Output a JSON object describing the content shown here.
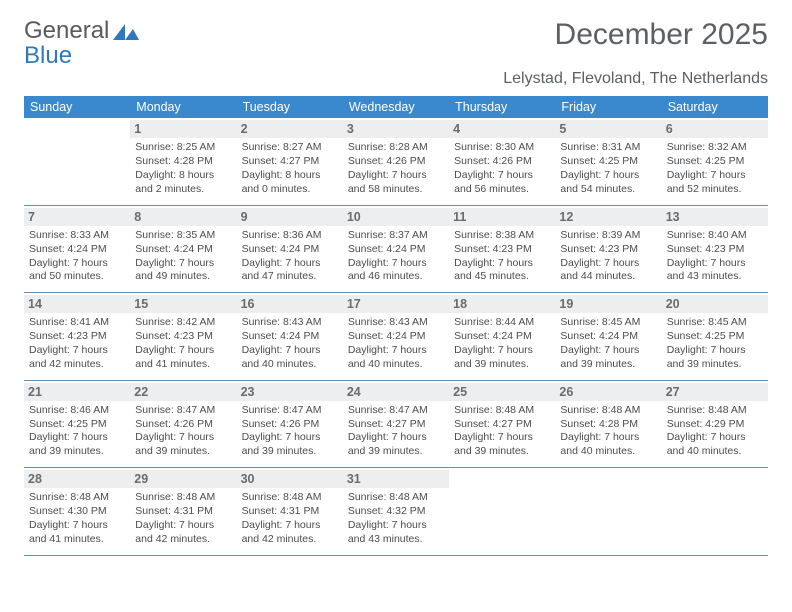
{
  "logo": {
    "word1": "General",
    "word2": "Blue"
  },
  "title": "December 2025",
  "subtitle": "Lelystad, Flevoland, The Netherlands",
  "colors": {
    "header_bg": "#3a89cf",
    "header_fg": "#ffffff",
    "daynum_bg": "#edeeef",
    "daynum_fg": "#686c6f",
    "rule": "#5f92bc",
    "title_fg": "#5b6064",
    "body_fg": "#4a4d50",
    "logo_gray": "#555a5e",
    "logo_blue": "#2f78bd"
  },
  "day_names": [
    "Sunday",
    "Monday",
    "Tuesday",
    "Wednesday",
    "Thursday",
    "Friday",
    "Saturday"
  ],
  "weeks": [
    [
      {
        "n": "",
        "lines": []
      },
      {
        "n": "1",
        "lines": [
          "Sunrise: 8:25 AM",
          "Sunset: 4:28 PM",
          "Daylight: 8 hours",
          "and 2 minutes."
        ]
      },
      {
        "n": "2",
        "lines": [
          "Sunrise: 8:27 AM",
          "Sunset: 4:27 PM",
          "Daylight: 8 hours",
          "and 0 minutes."
        ]
      },
      {
        "n": "3",
        "lines": [
          "Sunrise: 8:28 AM",
          "Sunset: 4:26 PM",
          "Daylight: 7 hours",
          "and 58 minutes."
        ]
      },
      {
        "n": "4",
        "lines": [
          "Sunrise: 8:30 AM",
          "Sunset: 4:26 PM",
          "Daylight: 7 hours",
          "and 56 minutes."
        ]
      },
      {
        "n": "5",
        "lines": [
          "Sunrise: 8:31 AM",
          "Sunset: 4:25 PM",
          "Daylight: 7 hours",
          "and 54 minutes."
        ]
      },
      {
        "n": "6",
        "lines": [
          "Sunrise: 8:32 AM",
          "Sunset: 4:25 PM",
          "Daylight: 7 hours",
          "and 52 minutes."
        ]
      }
    ],
    [
      {
        "n": "7",
        "lines": [
          "Sunrise: 8:33 AM",
          "Sunset: 4:24 PM",
          "Daylight: 7 hours",
          "and 50 minutes."
        ]
      },
      {
        "n": "8",
        "lines": [
          "Sunrise: 8:35 AM",
          "Sunset: 4:24 PM",
          "Daylight: 7 hours",
          "and 49 minutes."
        ]
      },
      {
        "n": "9",
        "lines": [
          "Sunrise: 8:36 AM",
          "Sunset: 4:24 PM",
          "Daylight: 7 hours",
          "and 47 minutes."
        ]
      },
      {
        "n": "10",
        "lines": [
          "Sunrise: 8:37 AM",
          "Sunset: 4:24 PM",
          "Daylight: 7 hours",
          "and 46 minutes."
        ]
      },
      {
        "n": "11",
        "lines": [
          "Sunrise: 8:38 AM",
          "Sunset: 4:23 PM",
          "Daylight: 7 hours",
          "and 45 minutes."
        ]
      },
      {
        "n": "12",
        "lines": [
          "Sunrise: 8:39 AM",
          "Sunset: 4:23 PM",
          "Daylight: 7 hours",
          "and 44 minutes."
        ]
      },
      {
        "n": "13",
        "lines": [
          "Sunrise: 8:40 AM",
          "Sunset: 4:23 PM",
          "Daylight: 7 hours",
          "and 43 minutes."
        ]
      }
    ],
    [
      {
        "n": "14",
        "lines": [
          "Sunrise: 8:41 AM",
          "Sunset: 4:23 PM",
          "Daylight: 7 hours",
          "and 42 minutes."
        ]
      },
      {
        "n": "15",
        "lines": [
          "Sunrise: 8:42 AM",
          "Sunset: 4:23 PM",
          "Daylight: 7 hours",
          "and 41 minutes."
        ]
      },
      {
        "n": "16",
        "lines": [
          "Sunrise: 8:43 AM",
          "Sunset: 4:24 PM",
          "Daylight: 7 hours",
          "and 40 minutes."
        ]
      },
      {
        "n": "17",
        "lines": [
          "Sunrise: 8:43 AM",
          "Sunset: 4:24 PM",
          "Daylight: 7 hours",
          "and 40 minutes."
        ]
      },
      {
        "n": "18",
        "lines": [
          "Sunrise: 8:44 AM",
          "Sunset: 4:24 PM",
          "Daylight: 7 hours",
          "and 39 minutes."
        ]
      },
      {
        "n": "19",
        "lines": [
          "Sunrise: 8:45 AM",
          "Sunset: 4:24 PM",
          "Daylight: 7 hours",
          "and 39 minutes."
        ]
      },
      {
        "n": "20",
        "lines": [
          "Sunrise: 8:45 AM",
          "Sunset: 4:25 PM",
          "Daylight: 7 hours",
          "and 39 minutes."
        ]
      }
    ],
    [
      {
        "n": "21",
        "lines": [
          "Sunrise: 8:46 AM",
          "Sunset: 4:25 PM",
          "Daylight: 7 hours",
          "and 39 minutes."
        ]
      },
      {
        "n": "22",
        "lines": [
          "Sunrise: 8:47 AM",
          "Sunset: 4:26 PM",
          "Daylight: 7 hours",
          "and 39 minutes."
        ]
      },
      {
        "n": "23",
        "lines": [
          "Sunrise: 8:47 AM",
          "Sunset: 4:26 PM",
          "Daylight: 7 hours",
          "and 39 minutes."
        ]
      },
      {
        "n": "24",
        "lines": [
          "Sunrise: 8:47 AM",
          "Sunset: 4:27 PM",
          "Daylight: 7 hours",
          "and 39 minutes."
        ]
      },
      {
        "n": "25",
        "lines": [
          "Sunrise: 8:48 AM",
          "Sunset: 4:27 PM",
          "Daylight: 7 hours",
          "and 39 minutes."
        ]
      },
      {
        "n": "26",
        "lines": [
          "Sunrise: 8:48 AM",
          "Sunset: 4:28 PM",
          "Daylight: 7 hours",
          "and 40 minutes."
        ]
      },
      {
        "n": "27",
        "lines": [
          "Sunrise: 8:48 AM",
          "Sunset: 4:29 PM",
          "Daylight: 7 hours",
          "and 40 minutes."
        ]
      }
    ],
    [
      {
        "n": "28",
        "lines": [
          "Sunrise: 8:48 AM",
          "Sunset: 4:30 PM",
          "Daylight: 7 hours",
          "and 41 minutes."
        ]
      },
      {
        "n": "29",
        "lines": [
          "Sunrise: 8:48 AM",
          "Sunset: 4:31 PM",
          "Daylight: 7 hours",
          "and 42 minutes."
        ]
      },
      {
        "n": "30",
        "lines": [
          "Sunrise: 8:48 AM",
          "Sunset: 4:31 PM",
          "Daylight: 7 hours",
          "and 42 minutes."
        ]
      },
      {
        "n": "31",
        "lines": [
          "Sunrise: 8:48 AM",
          "Sunset: 4:32 PM",
          "Daylight: 7 hours",
          "and 43 minutes."
        ]
      },
      {
        "n": "",
        "lines": []
      },
      {
        "n": "",
        "lines": []
      },
      {
        "n": "",
        "lines": []
      }
    ]
  ]
}
